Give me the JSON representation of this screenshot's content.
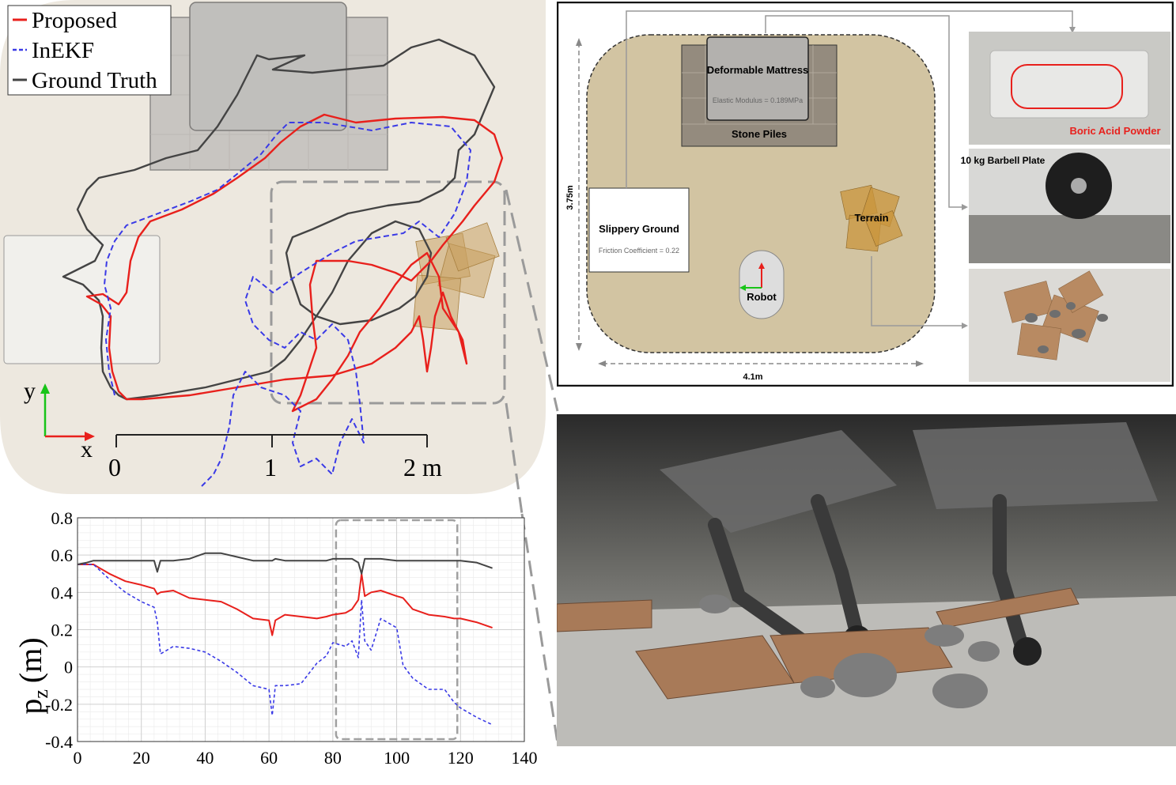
{
  "colors": {
    "proposed": "#e8201c",
    "inekf": "#3a3ae6",
    "ground_truth": "#444444",
    "arena": "#ede8df",
    "map_floor": "#d2c4a2"
  },
  "trajectory": {
    "legend": [
      {
        "label": "Proposed",
        "style": "solid red"
      },
      {
        "label": "InEKF",
        "style": "dashed blue"
      },
      {
        "label": "Ground Truth",
        "style": "solid gray"
      }
    ],
    "axis_y_label": "y",
    "axis_x_label": "x",
    "scale_ticks": [
      "0",
      "1",
      "2 m"
    ]
  },
  "chart_data": {
    "type": "line",
    "title": "",
    "xlabel": "",
    "ylabel": "p",
    "ylabel_subscript": "z",
    "ylabel_unit": "(m)",
    "xlim": [
      0,
      140
    ],
    "ylim": [
      -0.4,
      0.8
    ],
    "x_ticks": [
      "0",
      "20",
      "40",
      "60",
      "80",
      "100",
      "120",
      "140"
    ],
    "y_ticks": [
      "-0.4",
      "-0.2",
      "0",
      "0.2",
      "0.4",
      "0.6",
      "0.8"
    ],
    "grid": true,
    "highlight_x": [
      81,
      119
    ],
    "x": [
      0,
      3,
      5,
      10,
      15,
      20,
      24,
      25,
      26,
      30,
      35,
      40,
      45,
      50,
      55,
      60,
      61,
      62,
      65,
      70,
      75,
      78,
      80,
      84,
      86,
      88,
      89,
      90,
      92,
      95,
      100,
      102,
      105,
      110,
      115,
      118,
      120,
      125,
      130
    ],
    "series": [
      {
        "name": "Proposed",
        "values": [
          0.55,
          0.55,
          0.55,
          0.5,
          0.46,
          0.44,
          0.42,
          0.39,
          0.4,
          0.41,
          0.37,
          0.36,
          0.35,
          0.31,
          0.26,
          0.25,
          0.17,
          0.25,
          0.28,
          0.27,
          0.26,
          0.27,
          0.28,
          0.29,
          0.31,
          0.36,
          0.5,
          0.38,
          0.4,
          0.41,
          0.38,
          0.37,
          0.31,
          0.28,
          0.27,
          0.26,
          0.26,
          0.24,
          0.21
        ]
      },
      {
        "name": "InEKF",
        "values": [
          0.55,
          0.55,
          0.55,
          0.47,
          0.4,
          0.35,
          0.32,
          0.24,
          0.07,
          0.11,
          0.1,
          0.08,
          0.03,
          -0.03,
          -0.1,
          -0.12,
          -0.26,
          -0.1,
          -0.1,
          -0.09,
          0.02,
          0.06,
          0.13,
          0.11,
          0.14,
          0.05,
          0.36,
          0.14,
          0.09,
          0.26,
          0.21,
          0.01,
          -0.06,
          -0.12,
          -0.12,
          -0.19,
          -0.22,
          -0.27,
          -0.31
        ]
      },
      {
        "name": "Ground Truth",
        "values": [
          0.55,
          0.56,
          0.57,
          0.57,
          0.57,
          0.57,
          0.57,
          0.51,
          0.57,
          0.57,
          0.58,
          0.61,
          0.61,
          0.59,
          0.57,
          0.57,
          0.57,
          0.58,
          0.57,
          0.57,
          0.57,
          0.57,
          0.58,
          0.58,
          0.58,
          0.56,
          0.5,
          0.58,
          0.58,
          0.58,
          0.57,
          0.57,
          0.57,
          0.57,
          0.57,
          0.57,
          0.57,
          0.56,
          0.53
        ]
      }
    ]
  },
  "map": {
    "mattress_title": "Deformable Mattress",
    "mattress_modulus": "Elastic Modulus = 0.189MPa",
    "stone_piles": "Stone Piles",
    "slippery_title": "Slippery Ground",
    "slippery_friction": "Friction Coefficient = 0.22",
    "terrain": "Terrain",
    "robot": "Robot",
    "dim_height": "3.75m",
    "dim_width": "4.1m",
    "boric_label": "Boric Acid Powder",
    "barbell_label": "10 kg Barbell Plate"
  }
}
